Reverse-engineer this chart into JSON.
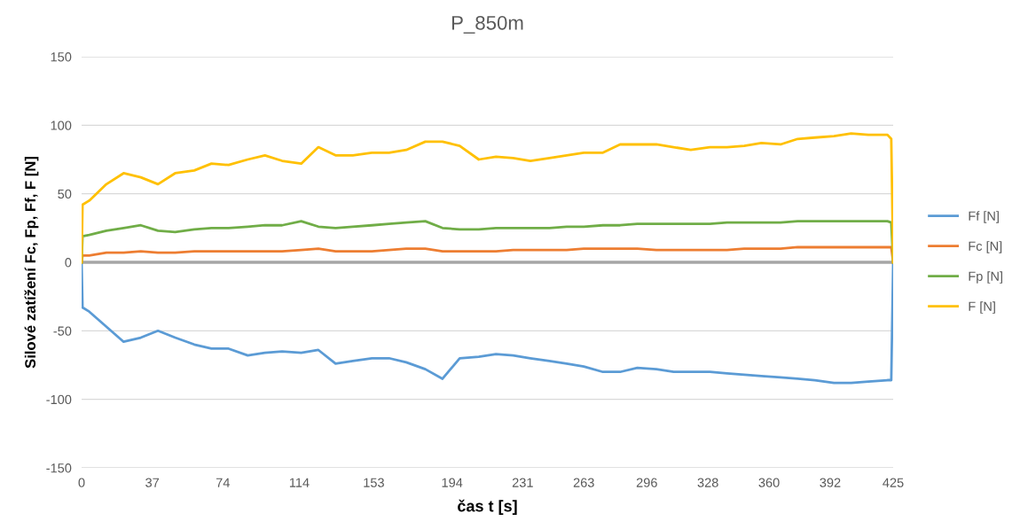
{
  "chart_data": {
    "type": "line",
    "title": "P_850m",
    "xlabel": "čas t [s]",
    "ylabel": "Silové zatížení Fc, Fp, Ff, F [N]",
    "x": [
      0,
      0.5,
      4,
      13,
      22,
      31,
      40,
      49,
      59,
      68,
      77,
      87,
      96,
      105,
      115,
      124,
      133,
      142,
      152,
      161,
      170,
      180,
      189,
      198,
      208,
      217,
      226,
      235,
      245,
      254,
      263,
      273,
      282,
      291,
      301,
      310,
      319,
      329,
      338,
      347,
      356,
      366,
      375,
      384,
      394,
      403,
      412,
      422,
      424,
      425
    ],
    "series": [
      {
        "name": "Ff [N]",
        "color": "#5b9bd5",
        "values": [
          0,
          -33,
          -36,
          -47,
          -58,
          -55,
          -50,
          -55,
          -60,
          -63,
          -63,
          -68,
          -66,
          -65,
          -66,
          -64,
          -74,
          -72,
          -70,
          -70,
          -73,
          -78,
          -85,
          -70,
          -69,
          -67,
          -68,
          -70,
          -72,
          -74,
          -76,
          -80,
          -80,
          -77,
          -78,
          -80,
          -80,
          -80,
          -81,
          -82,
          -83,
          -84,
          -85,
          -86,
          -88,
          -88,
          -87,
          -86,
          -86,
          0
        ]
      },
      {
        "name": "Fc [N]",
        "color": "#ed7d31",
        "values": [
          0,
          5,
          5,
          7,
          7,
          8,
          7,
          7,
          8,
          8,
          8,
          8,
          8,
          8,
          9,
          10,
          8,
          8,
          8,
          9,
          10,
          10,
          8,
          8,
          8,
          8,
          9,
          9,
          9,
          9,
          10,
          10,
          10,
          10,
          9,
          9,
          9,
          9,
          9,
          10,
          10,
          10,
          11,
          11,
          11,
          11,
          11,
          11,
          11,
          0
        ]
      },
      {
        "name": "Fp [N]",
        "color": "#70ad47",
        "values": [
          0,
          19,
          20,
          23,
          25,
          27,
          23,
          22,
          24,
          25,
          25,
          26,
          27,
          27,
          30,
          26,
          25,
          26,
          27,
          28,
          29,
          30,
          25,
          24,
          24,
          25,
          25,
          25,
          25,
          26,
          26,
          27,
          27,
          28,
          28,
          28,
          28,
          28,
          29,
          29,
          29,
          29,
          30,
          30,
          30,
          30,
          30,
          30,
          29,
          0
        ]
      },
      {
        "name": "F [N]",
        "color": "#ffc000",
        "values": [
          0,
          42,
          45,
          57,
          65,
          62,
          57,
          65,
          67,
          72,
          71,
          75,
          78,
          74,
          72,
          84,
          78,
          78,
          80,
          80,
          82,
          88,
          88,
          85,
          75,
          77,
          76,
          74,
          76,
          78,
          80,
          80,
          86,
          86,
          86,
          84,
          82,
          84,
          84,
          85,
          87,
          86,
          90,
          91,
          92,
          94,
          93,
          93,
          90,
          0
        ]
      }
    ],
    "xlim": [
      0,
      425
    ],
    "xticks": [
      0,
      37,
      74,
      114,
      153,
      194,
      231,
      263,
      296,
      328,
      360,
      392,
      425
    ],
    "ylim": [
      -150,
      150
    ],
    "yticks": [
      -150,
      -100,
      -50,
      0,
      50,
      100,
      150
    ],
    "ref_lines": [
      {
        "axis": "y",
        "value": 0,
        "color": "#a6a6a6"
      }
    ],
    "grid": "y",
    "legend": "right",
    "marker": "none",
    "line_style": "solid"
  }
}
